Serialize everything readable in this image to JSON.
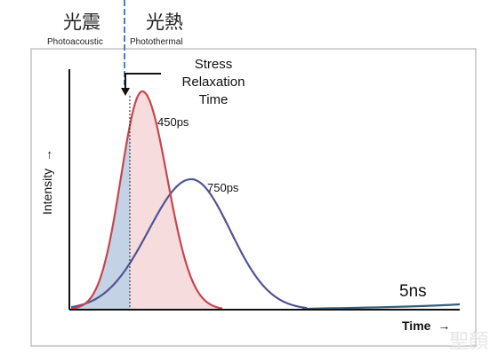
{
  "header": {
    "left_cjk": "光震",
    "left_sub": "Photoacoustic",
    "right_cjk": "光熱",
    "right_sub": "Photothermal"
  },
  "annotation": {
    "stress_line1": "Stress",
    "stress_line2": "Relaxation",
    "stress_line3": "Time"
  },
  "peaks": {
    "pulse_450": "450ps",
    "pulse_750": "750ps"
  },
  "tail_label": "5ns",
  "axes": {
    "y_label": "Intensity",
    "y_arrow": "→",
    "x_label": "Time",
    "x_arrow": "→"
  },
  "watermark": "聖顏",
  "colors": {
    "red_curve": "#c8464e",
    "red_fill": "#f6dcdc",
    "blue_curve": "#525494",
    "blue_fill": "#c4d2e6",
    "divider": "#3f7fd6",
    "tail_line": "#3a5e7a",
    "frame": "#b5b5b5"
  }
}
